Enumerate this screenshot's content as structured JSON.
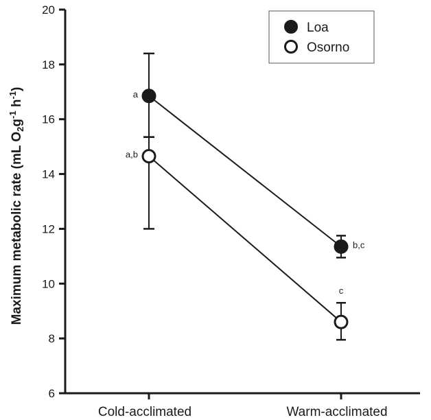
{
  "chart_data": {
    "type": "line",
    "categories": [
      "Cold-acclimated",
      "Warm-acclimated"
    ],
    "ylabel": {
      "parts": [
        {
          "text": "Maximum metabolic rate (mL O",
          "style": "normal"
        },
        {
          "text": "2",
          "style": "sub"
        },
        {
          "text": "g",
          "style": "normal"
        },
        {
          "text": "-1",
          "style": "sup"
        },
        {
          "text": " h",
          "style": "normal"
        },
        {
          "text": "-1",
          "style": "sup"
        },
        {
          "text": ")",
          "style": "normal"
        }
      ]
    },
    "ylim": [
      6,
      20
    ],
    "yticks": [
      6,
      8,
      10,
      12,
      14,
      16,
      18,
      20
    ],
    "grid": false,
    "legend_position": "top-right",
    "series": [
      {
        "name": "Loa",
        "marker": "filled-circle",
        "color": "#1a1a1a",
        "values": [
          16.85,
          11.35
        ],
        "error_low": [
          15.35,
          10.95
        ],
        "error_high": [
          18.4,
          11.75
        ],
        "annotations": [
          "a",
          "b,c"
        ],
        "annotation_side": [
          "left",
          "right"
        ]
      },
      {
        "name": "Osorno",
        "marker": "open-circle",
        "color": "#1a1a1a",
        "values": [
          14.65,
          8.6
        ],
        "error_low": [
          12.0,
          7.95
        ],
        "error_high": [
          15.35,
          9.3
        ],
        "annotations": [
          "a,b",
          "c"
        ],
        "annotation_side": [
          "left",
          "above"
        ]
      }
    ]
  }
}
